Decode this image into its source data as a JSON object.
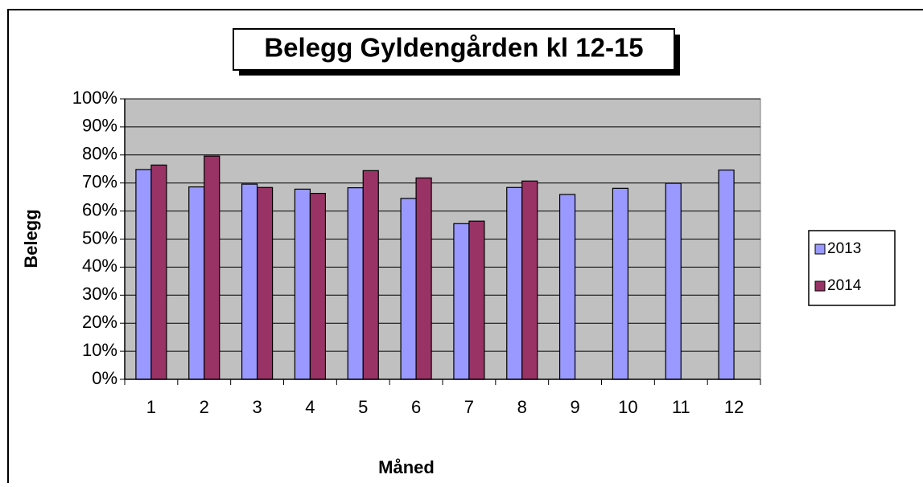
{
  "chart_data": {
    "type": "bar",
    "title": "Belegg Gyldengården kl 12-15",
    "x_label": "Måned",
    "y_label": "Belegg",
    "categories": [
      "1",
      "2",
      "3",
      "4",
      "5",
      "6",
      "7",
      "8",
      "9",
      "10",
      "11",
      "12"
    ],
    "series": [
      {
        "name": "2013",
        "color": "#9999ff",
        "values": [
          74.8,
          68.6,
          69.6,
          67.8,
          68.3,
          64.5,
          55.5,
          68.4,
          65.9,
          68.1,
          69.9,
          74.6
        ]
      },
      {
        "name": "2014",
        "color": "#993366",
        "values": [
          76.4,
          79.6,
          68.4,
          66.3,
          74.4,
          71.8,
          56.4,
          70.7,
          null,
          null,
          null,
          null
        ]
      }
    ],
    "ylim": [
      0,
      100
    ],
    "yticks": [
      {
        "value": 0,
        "label": "0%"
      },
      {
        "value": 10,
        "label": "10%"
      },
      {
        "value": 20,
        "label": "20%"
      },
      {
        "value": 30,
        "label": "30%"
      },
      {
        "value": 40,
        "label": "40%"
      },
      {
        "value": 50,
        "label": "50%"
      },
      {
        "value": 60,
        "label": "60%"
      },
      {
        "value": 70,
        "label": "70%"
      },
      {
        "value": 80,
        "label": "80%"
      },
      {
        "value": 90,
        "label": "90%"
      },
      {
        "value": 100,
        "label": "100%"
      }
    ],
    "grid": true,
    "plot_background": "#c0c0c0",
    "legend": "right"
  }
}
